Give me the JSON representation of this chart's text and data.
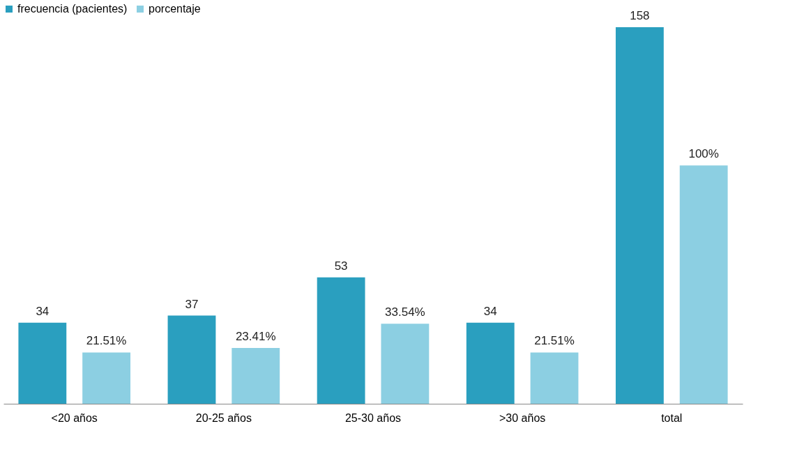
{
  "chart_data": {
    "type": "bar",
    "categories": [
      "<20 años",
      "20-25 años",
      "25-30 años",
      ">30 años",
      "total"
    ],
    "series": [
      {
        "name": "frecuencia (pacientes)",
        "color": "#2a9fbf",
        "values": [
          34,
          37,
          53,
          34,
          158
        ],
        "value_labels": [
          "34",
          "37",
          "53",
          "34",
          "158"
        ]
      },
      {
        "name": "porcentaje",
        "color": "#8ccfe2",
        "values": [
          21.51,
          23.41,
          33.54,
          21.51,
          100
        ],
        "value_labels": [
          "21.51%",
          "23.41%",
          "33.54%",
          "21.51%",
          "100%"
        ]
      }
    ],
    "legend": "top",
    "grid": false
  }
}
